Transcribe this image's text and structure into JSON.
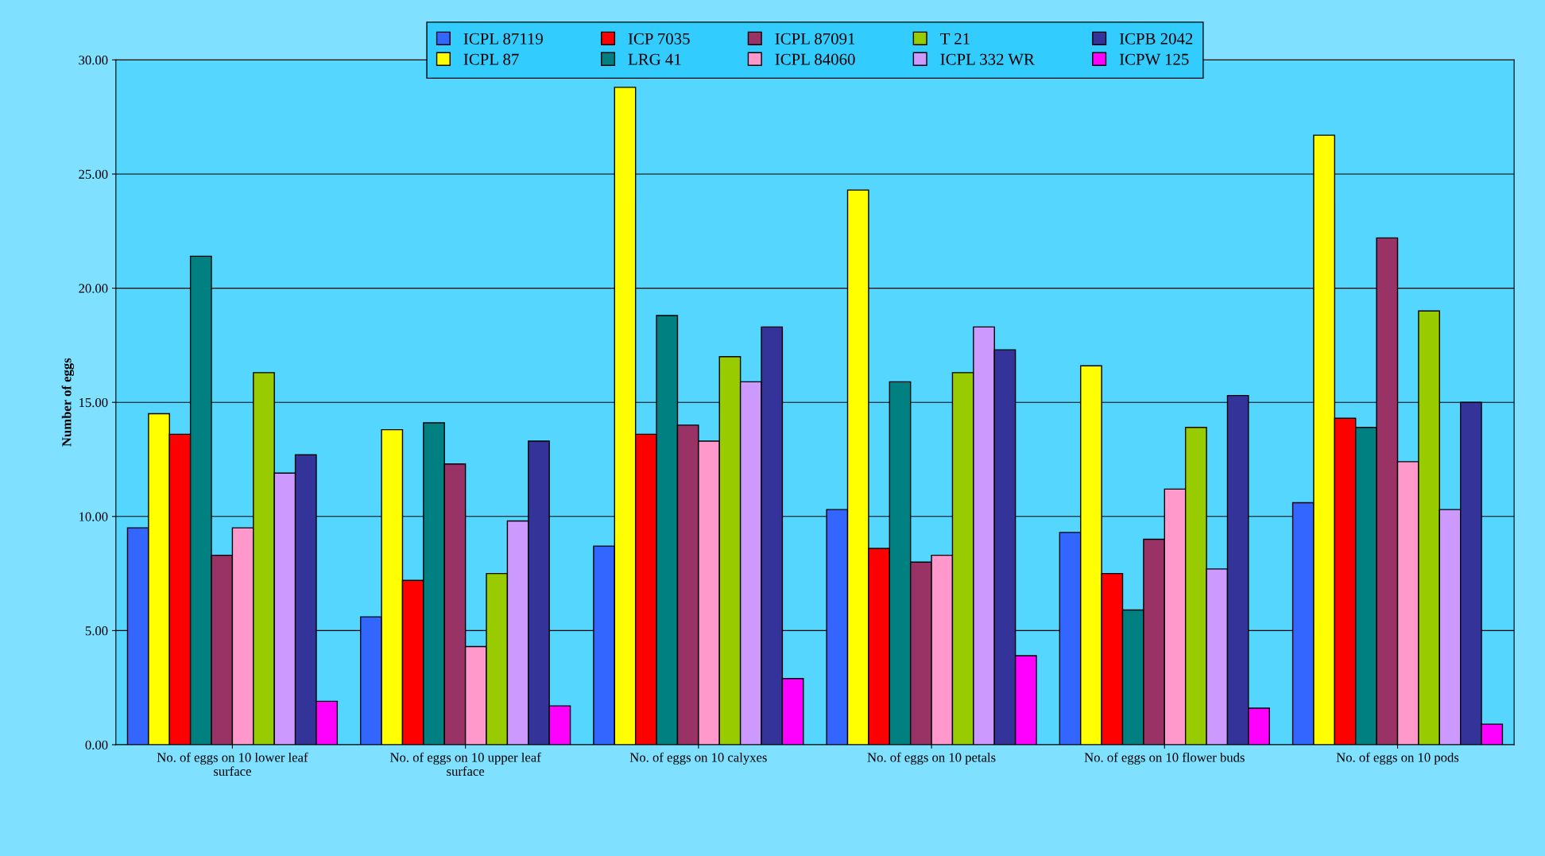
{
  "chart_data": {
    "type": "bar",
    "ylabel": "Number of eggs",
    "categories": [
      "No. of eggs on 10 lower leaf surface",
      "No. of eggs on 10 upper leaf surface",
      "No. of eggs on 10 calyxes",
      "No. of eggs on 10 petals",
      "No. of eggs on 10 flower buds",
      "No. of eggs on 10 pods"
    ],
    "series": [
      {
        "name": "ICPL 87119",
        "color": "#3366ff",
        "values": [
          9.5,
          5.6,
          8.7,
          10.3,
          9.3,
          10.6
        ]
      },
      {
        "name": "ICPL 87",
        "color": "#ffff00",
        "values": [
          14.5,
          13.8,
          28.8,
          24.3,
          16.6,
          26.7
        ]
      },
      {
        "name": "ICP 7035",
        "color": "#ff0000",
        "values": [
          13.6,
          7.2,
          13.6,
          8.6,
          7.5,
          14.3
        ]
      },
      {
        "name": "LRG 41",
        "color": "#008080",
        "values": [
          21.4,
          14.1,
          18.8,
          15.9,
          5.9,
          13.9
        ]
      },
      {
        "name": "ICPL 87091",
        "color": "#993366",
        "values": [
          8.3,
          12.3,
          14.0,
          8.0,
          9.0,
          22.2
        ]
      },
      {
        "name": "ICPL 84060",
        "color": "#ff99cc",
        "values": [
          9.5,
          4.3,
          13.3,
          8.3,
          11.2,
          12.4
        ]
      },
      {
        "name": "T 21",
        "color": "#99cc00",
        "values": [
          16.3,
          7.5,
          17.0,
          16.3,
          13.9,
          19.0
        ]
      },
      {
        "name": "ICPL 332 WR",
        "color": "#cc99ff",
        "values": [
          11.9,
          9.8,
          15.9,
          18.3,
          7.7,
          10.3
        ]
      },
      {
        "name": "ICPB 2042",
        "color": "#333399",
        "values": [
          12.7,
          13.3,
          18.3,
          17.3,
          15.3,
          15.0
        ]
      },
      {
        "name": "ICPW 125",
        "color": "#ff00ff",
        "values": [
          1.9,
          1.7,
          2.9,
          3.9,
          1.6,
          0.9
        ]
      }
    ],
    "ylim": [
      0,
      30
    ],
    "yticks": [
      {
        "value": 0,
        "label": "0.00"
      },
      {
        "value": 5,
        "label": "5.00"
      },
      {
        "value": 10,
        "label": "10.00"
      },
      {
        "value": 15,
        "label": "15.00"
      },
      {
        "value": 20,
        "label": "20.00"
      },
      {
        "value": 25,
        "label": "25.00"
      },
      {
        "value": 30,
        "label": "30.00"
      }
    ],
    "grid": "y",
    "legend": "top"
  }
}
